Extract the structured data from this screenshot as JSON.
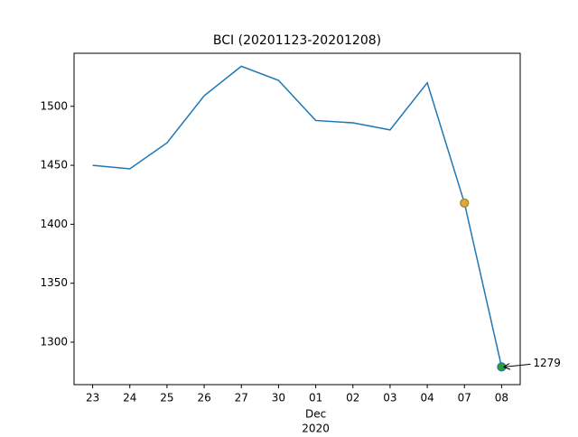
{
  "chart_data": {
    "type": "line",
    "title": "BCI (20201123-20201208)",
    "categories": [
      "23",
      "24",
      "25",
      "26",
      "27",
      "30",
      "01",
      "02",
      "03",
      "04",
      "07",
      "08"
    ],
    "x_month": "Dec",
    "x_year": "2020",
    "series": [
      {
        "name": "BCI",
        "color": "#1f77b4",
        "values": [
          1450,
          1447,
          1469,
          1509,
          1534,
          1522,
          1488,
          1486,
          1480,
          1520,
          1418,
          1279
        ]
      }
    ],
    "markers": [
      {
        "index": 10,
        "color": "#e8a33c",
        "edge": "#8c8c2a"
      },
      {
        "index": 11,
        "color": "#2ca02c",
        "edge": "#1f77b4"
      }
    ],
    "annotation": "1279",
    "ylim": [
      1264,
      1545
    ],
    "yticks": [
      1300,
      1350,
      1400,
      1450,
      1500
    ],
    "grid": false
  }
}
